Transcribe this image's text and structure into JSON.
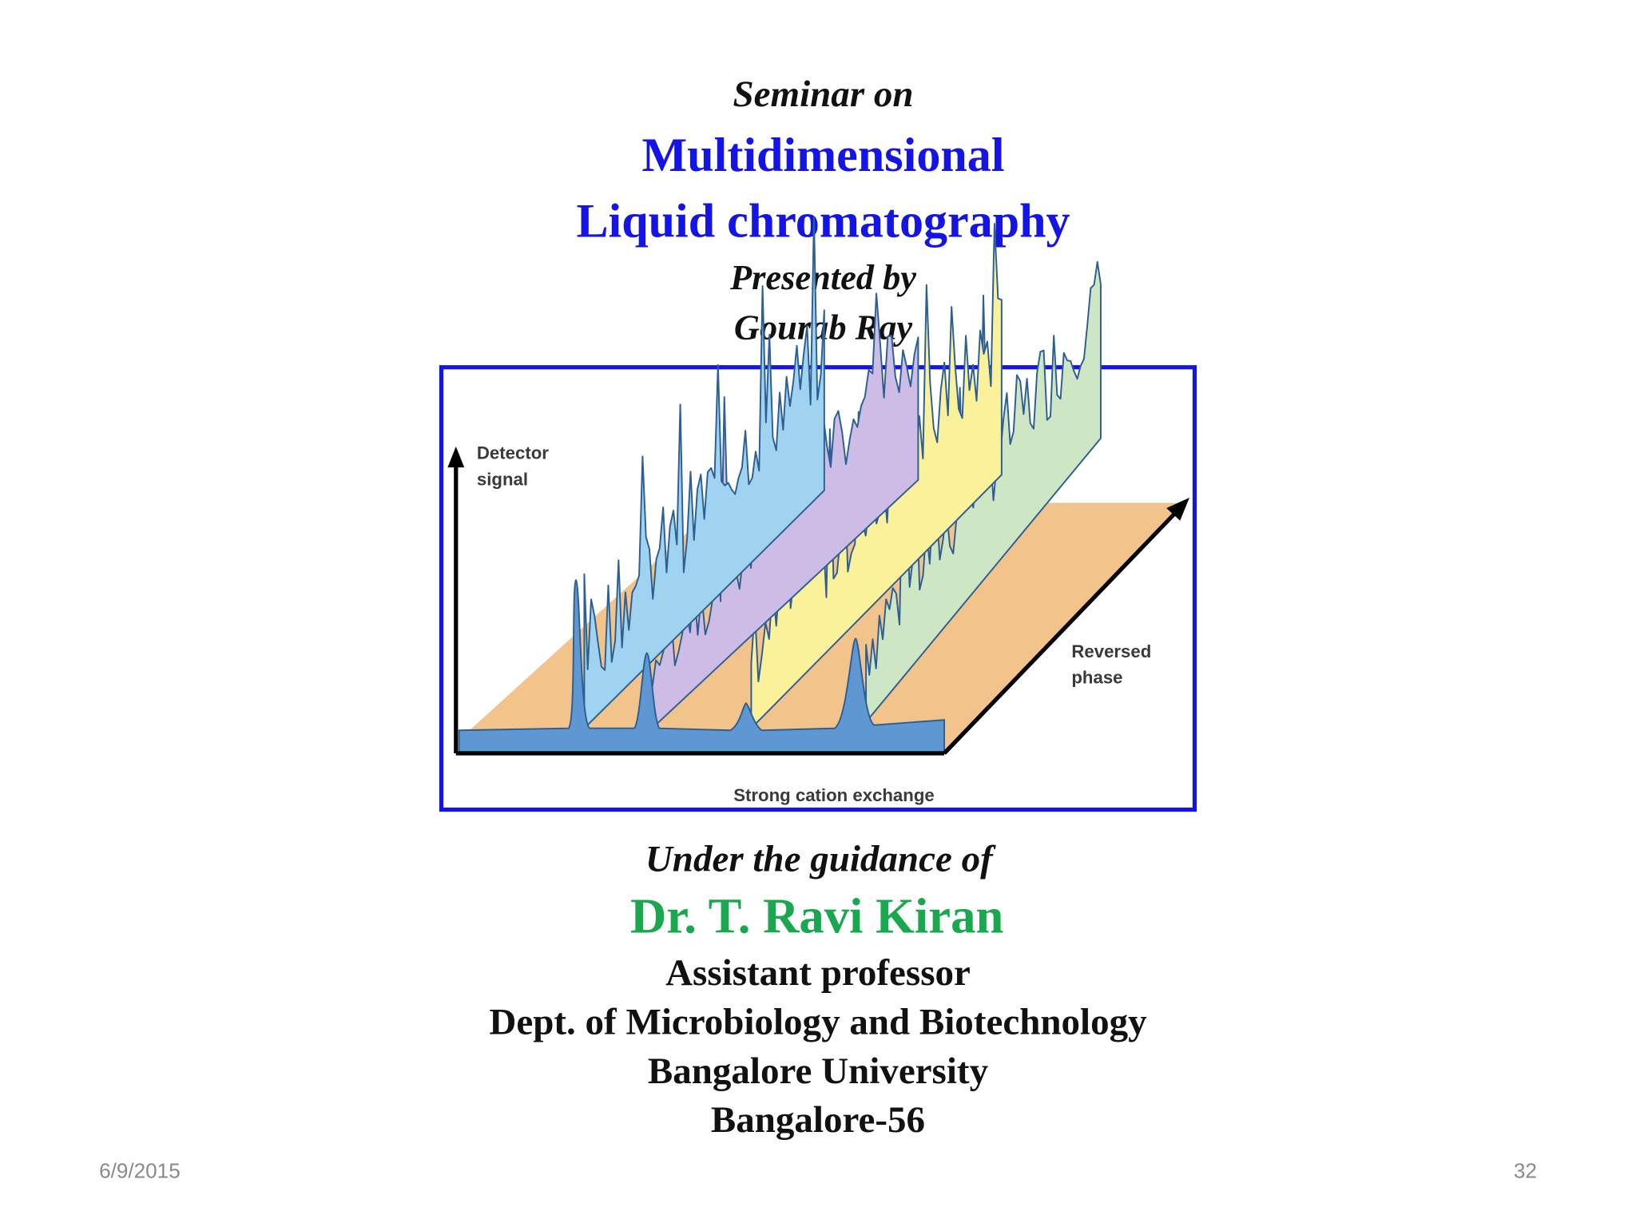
{
  "slide": {
    "title": {
      "intro": "Seminar on",
      "lines": [
        "Multidimensional",
        "Liquid chromatography"
      ],
      "presented_by": "Presented by",
      "presenter": "Gourab Ray"
    },
    "figure": {
      "y_axis_label": [
        "Detector",
        "signal"
      ],
      "depth_axis_label": [
        "Reversed",
        "phase"
      ],
      "x_axis_label": "Strong cation exchange"
    },
    "guidance": {
      "intro": "Under the guidance of",
      "name": "Dr. T. Ravi Kiran",
      "position": "Assistant professor",
      "department": "Dept. of Microbiology and Biotechnology",
      "university": "Bangalore University",
      "city": "Bangalore-56"
    },
    "footer": {
      "date": "6/9/2015",
      "page": "32"
    }
  }
}
